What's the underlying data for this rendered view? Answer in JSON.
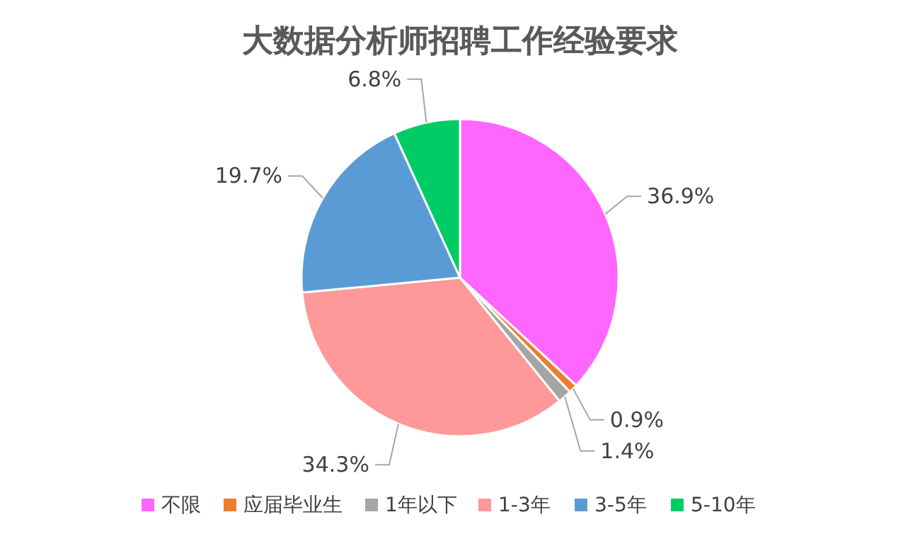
{
  "chart_data": {
    "type": "pie",
    "title": "大数据分析师招聘工作经验要求",
    "categories": [
      "不限",
      "应届毕业生",
      "1年以下",
      "1-3年",
      "3-5年",
      "5-10年"
    ],
    "values": [
      36.9,
      0.9,
      1.4,
      34.3,
      19.7,
      6.8
    ],
    "value_labels": [
      "36.9%",
      "0.9%",
      "1.4%",
      "34.3%",
      "19.7%",
      "6.8%"
    ],
    "colors": [
      "#ff66ff",
      "#ed7d31",
      "#a5a5a5",
      "#ff9999",
      "#5b9bd5",
      "#00cc66"
    ],
    "legend": "bottom"
  }
}
